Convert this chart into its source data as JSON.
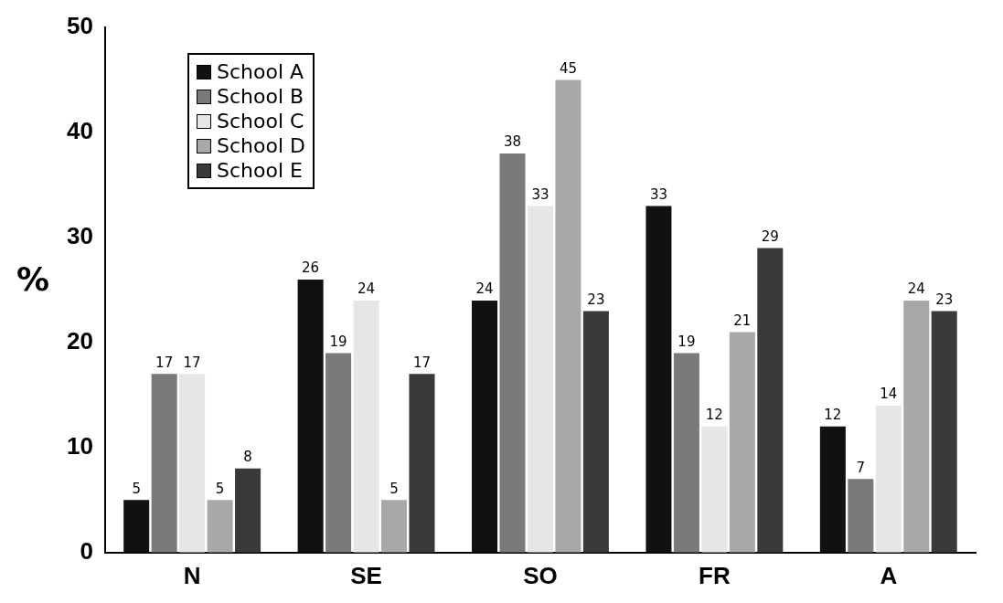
{
  "chart_data": {
    "type": "bar",
    "ylabel": "%",
    "categories": [
      "N",
      "SE",
      "SO",
      "FR",
      "A"
    ],
    "series": [
      {
        "name": "School A",
        "color": "#111111",
        "values": [
          5,
          26,
          24,
          33,
          12
        ]
      },
      {
        "name": "School B",
        "color": "#7a7a7a",
        "values": [
          17,
          19,
          38,
          19,
          7
        ]
      },
      {
        "name": "School C",
        "color": "#e6e6e6",
        "values": [
          17,
          24,
          33,
          12,
          14
        ]
      },
      {
        "name": "School D",
        "color": "#a8a8a8",
        "values": [
          5,
          5,
          45,
          21,
          24
        ]
      },
      {
        "name": "School E",
        "color": "#3a3a3a",
        "values": [
          8,
          17,
          23,
          29,
          23
        ]
      }
    ],
    "ylim": [
      0,
      50
    ],
    "yticks": [
      0,
      10,
      20,
      30,
      40,
      50
    ],
    "grid": false,
    "legend": "top left",
    "data_labels": true
  }
}
